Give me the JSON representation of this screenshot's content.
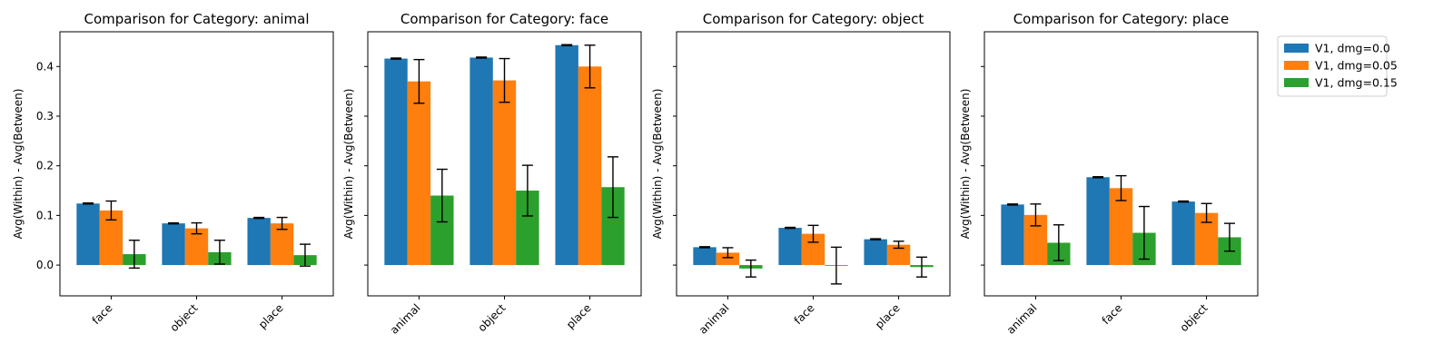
{
  "chart_data": [
    {
      "type": "bar",
      "title": "Comparison for Category: animal",
      "ylabel": "Avg(Within) - Avg(Between)",
      "categories": [
        "face",
        "object",
        "place"
      ],
      "ylim": [
        -0.062,
        0.47
      ],
      "yticks": [
        "0.0",
        "0.1",
        "0.2",
        "0.3",
        "0.4"
      ],
      "series": [
        {
          "name": "V1, dmg=0.0",
          "values": [
            0.124,
            0.084,
            0.095
          ],
          "errors": [
            0.001,
            0.001,
            0.001
          ]
        },
        {
          "name": "V1, dmg=0.05",
          "values": [
            0.11,
            0.074,
            0.084
          ],
          "errors": [
            0.019,
            0.011,
            0.012
          ]
        },
        {
          "name": "V1, dmg=0.15",
          "values": [
            0.022,
            0.026,
            0.02
          ],
          "errors": [
            0.028,
            0.024,
            0.022
          ]
        }
      ]
    },
    {
      "type": "bar",
      "title": "Comparison for Category: face",
      "ylabel": "Avg(Within) - Avg(Between)",
      "categories": [
        "animal",
        "object",
        "place"
      ],
      "ylim": [
        -0.062,
        0.47
      ],
      "yticks": [],
      "series": [
        {
          "name": "V1, dmg=0.0",
          "values": [
            0.416,
            0.418,
            0.443
          ],
          "errors": [
            0.001,
            0.001,
            0.001
          ]
        },
        {
          "name": "V1, dmg=0.05",
          "values": [
            0.37,
            0.372,
            0.4
          ],
          "errors": [
            0.044,
            0.044,
            0.043
          ]
        },
        {
          "name": "V1, dmg=0.15",
          "values": [
            0.14,
            0.15,
            0.157
          ],
          "errors": [
            0.053,
            0.051,
            0.061
          ]
        }
      ]
    },
    {
      "type": "bar",
      "title": "Comparison for Category: object",
      "ylabel": "Avg(Within) - Avg(Between)",
      "categories": [
        "animal",
        "face",
        "place"
      ],
      "ylim": [
        -0.062,
        0.47
      ],
      "yticks": [],
      "series": [
        {
          "name": "V1, dmg=0.0",
          "values": [
            0.036,
            0.075,
            0.052
          ],
          "errors": [
            0.001,
            0.001,
            0.001
          ]
        },
        {
          "name": "V1, dmg=0.05",
          "values": [
            0.025,
            0.063,
            0.041
          ],
          "errors": [
            0.01,
            0.017,
            0.007
          ]
        },
        {
          "name": "V1, dmg=0.15",
          "values": [
            -0.007,
            -0.001,
            -0.004
          ],
          "errors": [
            0.017,
            0.037,
            0.02
          ]
        }
      ]
    },
    {
      "type": "bar",
      "title": "Comparison for Category: place",
      "ylabel": "Avg(Within) - Avg(Between)",
      "categories": [
        "animal",
        "face",
        "object"
      ],
      "ylim": [
        -0.062,
        0.47
      ],
      "yticks": [],
      "series": [
        {
          "name": "V1, dmg=0.0",
          "values": [
            0.122,
            0.177,
            0.128
          ],
          "errors": [
            0.001,
            0.001,
            0.001
          ]
        },
        {
          "name": "V1, dmg=0.05",
          "values": [
            0.101,
            0.155,
            0.105
          ],
          "errors": [
            0.022,
            0.025,
            0.019
          ]
        },
        {
          "name": "V1, dmg=0.15",
          "values": [
            0.045,
            0.065,
            0.056
          ],
          "errors": [
            0.036,
            0.053,
            0.028
          ]
        }
      ]
    }
  ],
  "legend": {
    "placement": "upper-right-outside",
    "entries": [
      "V1, dmg=0.0",
      "V1, dmg=0.05",
      "V1, dmg=0.15"
    ]
  },
  "colors": {
    "series": [
      "#1f77b4",
      "#ff7f0e",
      "#2ca02c"
    ],
    "error_bars": "#000000",
    "axes": "#000000"
  }
}
